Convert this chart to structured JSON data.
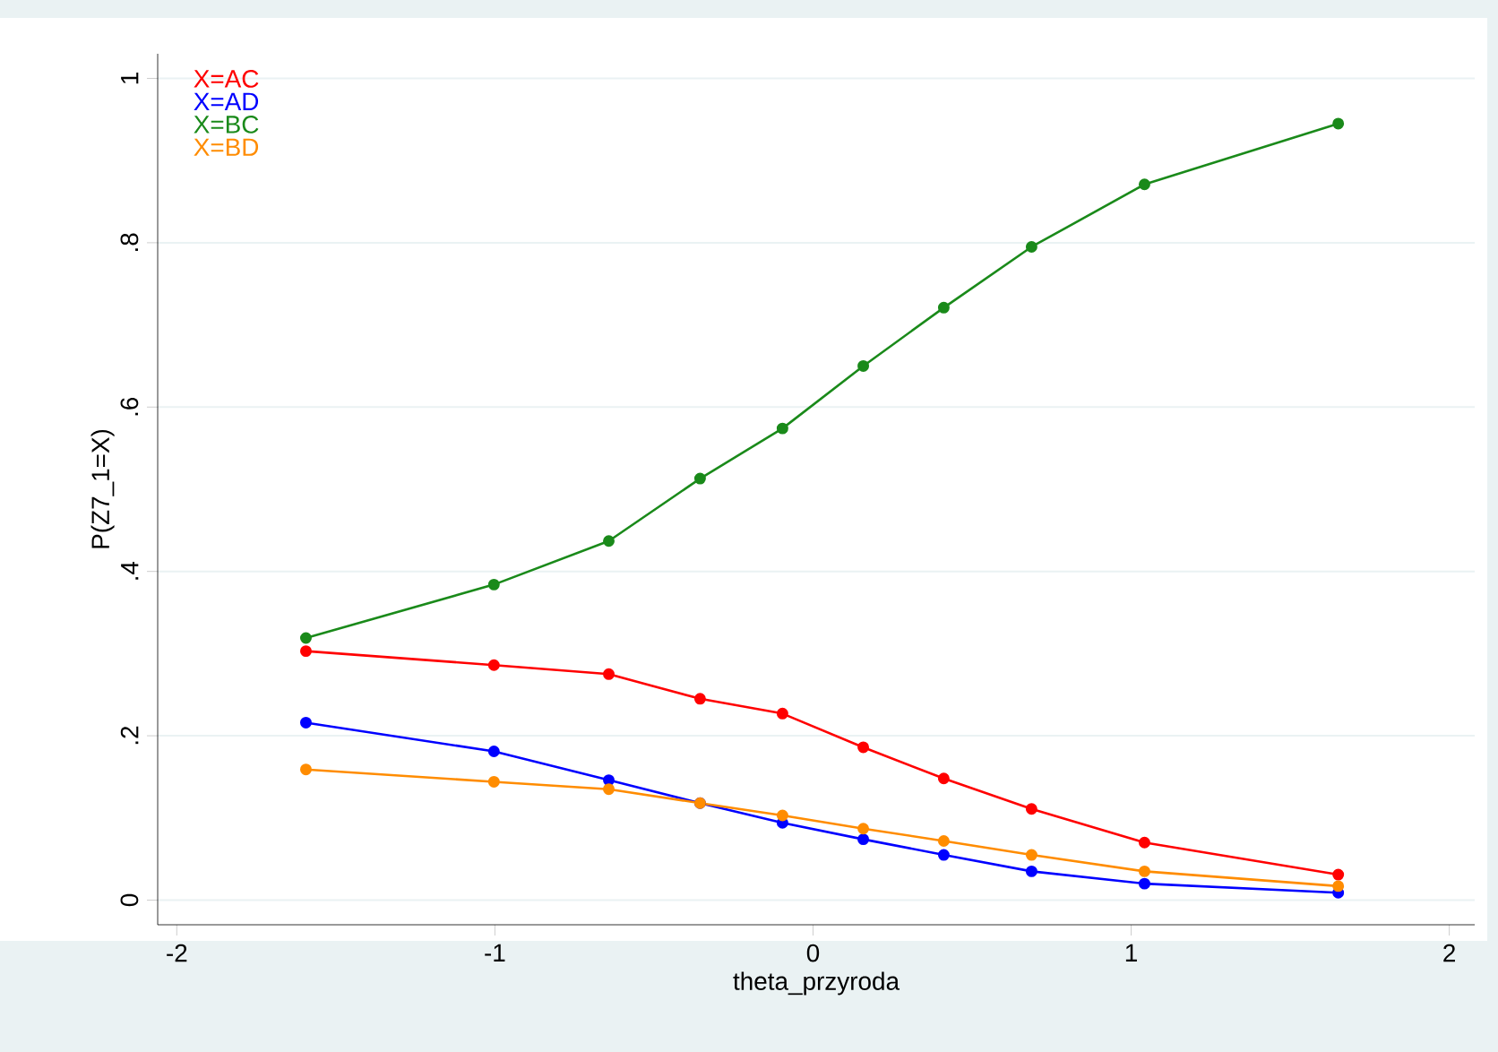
{
  "chart_data": {
    "type": "line",
    "xlabel": "theta_przyroda",
    "ylabel": "P(Z7_1=X)",
    "x": [
      -1.594,
      -1.003,
      -0.642,
      -0.355,
      -0.096,
      0.158,
      0.411,
      0.687,
      1.042,
      1.651
    ],
    "series": [
      {
        "name": "X=AC",
        "color": "#ff0000",
        "values": [
          0.303,
          0.286,
          0.275,
          0.245,
          0.227,
          0.186,
          0.148,
          0.111,
          0.07,
          0.031
        ]
      },
      {
        "name": "X=AD",
        "color": "#0000ff",
        "values": [
          0.216,
          0.181,
          0.146,
          0.118,
          0.094,
          0.074,
          0.055,
          0.035,
          0.02,
          0.009
        ]
      },
      {
        "name": "X=BC",
        "color": "#1a8a1a",
        "values": [
          0.319,
          0.384,
          0.437,
          0.513,
          0.574,
          0.65,
          0.721,
          0.795,
          0.871,
          0.945
        ]
      },
      {
        "name": "X=BD",
        "color": "#ff8c00",
        "values": [
          0.159,
          0.144,
          0.135,
          0.118,
          0.103,
          0.087,
          0.072,
          0.055,
          0.035,
          0.017
        ]
      }
    ],
    "xlim": [
      -2.06,
      2.08
    ],
    "ylim": [
      -0.03,
      1.03
    ],
    "xticks": [
      -2,
      -1,
      0,
      1,
      2
    ],
    "yticks": [
      0,
      {
        "value": 0.2,
        "label": ".2"
      },
      {
        "value": 0.4,
        "label": ".4"
      },
      {
        "value": 0.6,
        "label": ".6"
      },
      {
        "value": 0.8,
        "label": ".8"
      },
      1
    ],
    "grid": "y",
    "legend": "top left",
    "marker": "circle",
    "line_style": "solid"
  }
}
